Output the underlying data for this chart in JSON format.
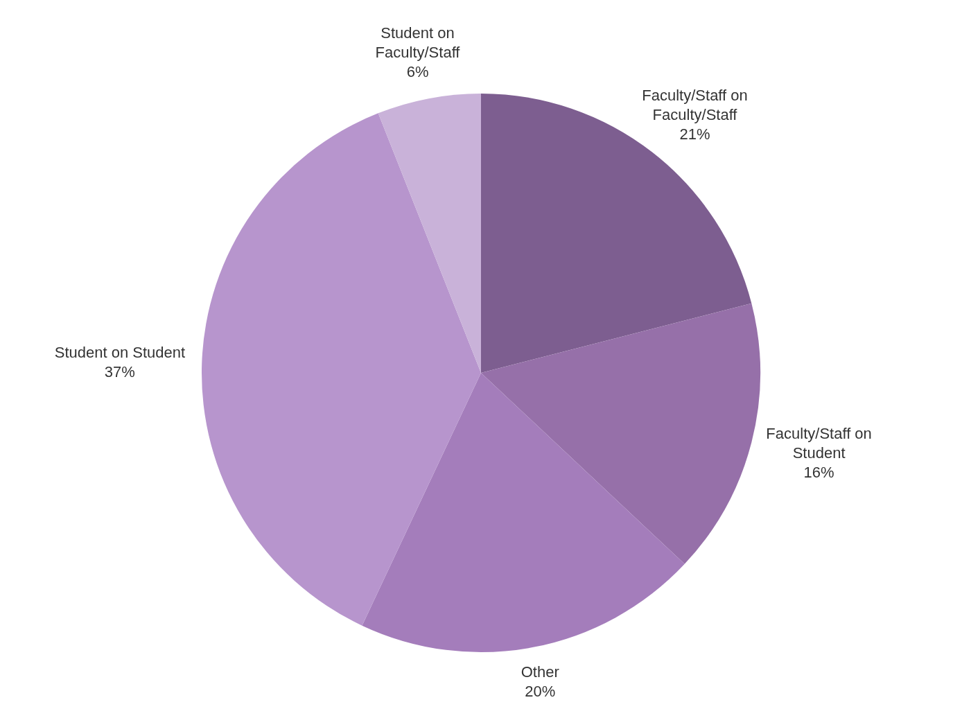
{
  "chart_data": {
    "type": "pie",
    "categories": [
      "Faculty/Staff on Faculty/Staff",
      "Faculty/Staff on Student",
      "Other",
      "Student on Student",
      "Student on Faculty/Staff"
    ],
    "values": [
      21,
      16,
      20,
      37,
      6
    ],
    "colors": [
      "#7d5e90",
      "#9670a9",
      "#a47dbb",
      "#b795cd",
      "#c9b2d9"
    ],
    "value_labels": [
      "21%",
      "16%",
      "20%",
      "37%",
      "6%"
    ]
  }
}
